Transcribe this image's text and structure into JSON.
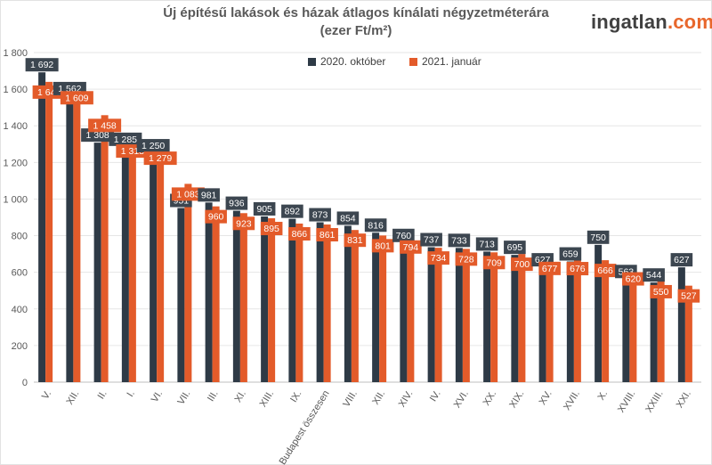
{
  "header": {
    "title_line1": "Új építésű lakások és házak átlagos kínálati négyzetméterára",
    "title_line2": "(ezer Ft/m²)",
    "brand_main": "ingatlan",
    "brand_suffix": ".com"
  },
  "colors": {
    "series_dark": "#2e3a46",
    "series_orange": "#e35b2a",
    "label_dark_bg": "#3c4650",
    "label_orange_bg": "#e35b2a",
    "grid": "#e6e6e6",
    "brand_accent": "#e8672c"
  },
  "chart_data": {
    "type": "bar",
    "ylim": [
      0,
      1800
    ],
    "yticks": [
      "0",
      "200",
      "400",
      "600",
      "800",
      "1 000",
      "1 200",
      "1 400",
      "1 600",
      "1 800"
    ],
    "grid": true,
    "legend_position": "top-center",
    "categories": [
      "V.",
      "XII.",
      "II.",
      "I.",
      "VI.",
      "VII.",
      "III.",
      "XI.",
      "XIII.",
      "IX.",
      "Budapest összesen",
      "VIII.",
      "XII.",
      "XIV.",
      "IV.",
      "XVI.",
      "XX.",
      "XIX.",
      "XV.",
      "XVII.",
      "X.",
      "XVIII.",
      "XXIII.",
      "XXI."
    ],
    "series": [
      {
        "name": "2020. október",
        "values": [
          1692,
          1562,
          1308,
          1285,
          1250,
          951,
          981,
          936,
          905,
          892,
          873,
          854,
          816,
          760,
          737,
          733,
          713,
          695,
          627,
          659,
          750,
          563,
          544,
          627
        ],
        "labels": [
          "1 692",
          "1 562",
          "1 308",
          "1 285",
          "1 250",
          "951",
          "981",
          "936",
          "905",
          "892",
          "873",
          "854",
          "816",
          "760",
          "737",
          "733",
          "713",
          "695",
          "627",
          "659",
          "750",
          "563",
          "544",
          "627"
        ]
      },
      {
        "name": "2021. január",
        "values": [
          1640,
          1609,
          1458,
          1318,
          1279,
          1083,
          960,
          923,
          895,
          866,
          861,
          831,
          801,
          794,
          734,
          728,
          709,
          700,
          677,
          676,
          666,
          620,
          550,
          527
        ],
        "labels": [
          "1 640",
          "1 609",
          "1 458",
          "1 318",
          "1 279",
          "1 083",
          "960",
          "923",
          "895",
          "866",
          "861",
          "831",
          "801",
          "794",
          "734",
          "728",
          "709",
          "700",
          "677",
          "676",
          "666",
          "620",
          "550",
          "527"
        ]
      }
    ]
  }
}
